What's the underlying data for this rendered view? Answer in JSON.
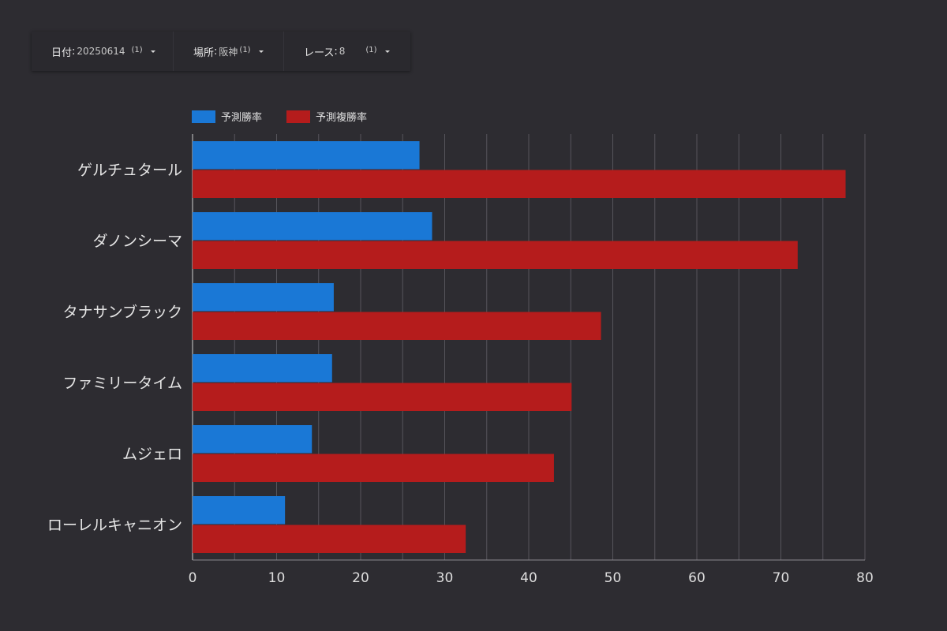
{
  "filters": [
    {
      "label": "日付",
      "value": "20250614",
      "count": "(1)",
      "icon": "caret-down-icon"
    },
    {
      "label": "場所",
      "value": "阪神",
      "count": "(1)",
      "icon": "caret-down-icon"
    },
    {
      "label": "レース",
      "value": "8",
      "count": "(1)",
      "icon": "caret-down-icon"
    }
  ],
  "colors": {
    "background": "#2d2c31",
    "series_1": "#1a78d6",
    "series_2": "#b51c1c"
  },
  "chart_data": {
    "type": "bar",
    "orientation": "horizontal",
    "categories": [
      "ゲルチュタール",
      "ダノンシーマ",
      "タナサンブラック",
      "ファミリータイム",
      "ムジェロ",
      "ローレルキャニオン"
    ],
    "series": [
      {
        "name": "予測勝率",
        "values": [
          27.0,
          28.5,
          16.8,
          16.6,
          14.2,
          11.0
        ]
      },
      {
        "name": "予測複勝率",
        "values": [
          77.7,
          72.0,
          48.6,
          45.1,
          43.0,
          32.5
        ]
      }
    ],
    "xlim": [
      0,
      80
    ],
    "xticks": [
      "0",
      "10",
      "20",
      "30",
      "40",
      "50",
      "60",
      "70",
      "80"
    ],
    "grid": true,
    "legend_position": "top-left"
  }
}
